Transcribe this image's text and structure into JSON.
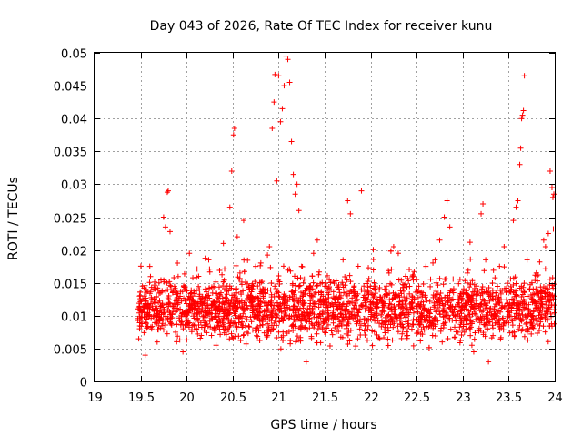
{
  "chart_data": {
    "type": "scatter",
    "title": "Day 043 of 2026, Rate Of TEC Index for receiver kunu",
    "xlabel": "GPS time / hours",
    "ylabel": "ROTI / TECUs",
    "xlim": [
      19,
      24
    ],
    "ylim": [
      0,
      0.05
    ],
    "grid": true,
    "marker": "+",
    "point_color": "#ff0000",
    "x_ticks": [
      "19",
      "19.5",
      "20",
      "20.5",
      "21",
      "21.5",
      "22",
      "22.5",
      "23",
      "23.5",
      "24"
    ],
    "y_ticks": [
      "0",
      "0.005",
      "0.01",
      "0.015",
      "0.02",
      "0.025",
      "0.03",
      "0.035",
      "0.04",
      "0.045",
      "0.05"
    ],
    "series": [
      {
        "name": "ROTI",
        "points": [
          [
            19.48,
            0.0065
          ],
          [
            19.5,
            0.011
          ],
          [
            19.52,
            0.0145
          ],
          [
            19.55,
            0.004
          ],
          [
            19.58,
            0.0105
          ],
          [
            19.6,
            0.0175
          ],
          [
            19.62,
            0.008
          ],
          [
            19.65,
            0.0125
          ],
          [
            19.68,
            0.006
          ],
          [
            19.7,
            0.015
          ],
          [
            19.72,
            0.0095
          ],
          [
            19.75,
            0.025
          ],
          [
            19.77,
            0.0235
          ],
          [
            19.79,
            0.0288
          ],
          [
            19.8,
            0.029
          ],
          [
            19.82,
            0.0228
          ],
          [
            19.85,
            0.0135
          ],
          [
            19.88,
            0.0075
          ],
          [
            19.9,
            0.018
          ],
          [
            19.93,
            0.011
          ],
          [
            19.96,
            0.0045
          ],
          [
            20.0,
            0.0138
          ],
          [
            20.03,
            0.0195
          ],
          [
            20.06,
            0.0085
          ],
          [
            20.1,
            0.012
          ],
          [
            20.13,
            0.016
          ],
          [
            20.16,
            0.007
          ],
          [
            20.2,
            0.0105
          ],
          [
            20.24,
            0.0185
          ],
          [
            20.28,
            0.0095
          ],
          [
            20.32,
            0.0055
          ],
          [
            20.36,
            0.013
          ],
          [
            20.4,
            0.021
          ],
          [
            20.44,
            0.0145
          ],
          [
            20.47,
            0.0265
          ],
          [
            20.49,
            0.032
          ],
          [
            20.51,
            0.0375
          ],
          [
            20.52,
            0.0385
          ],
          [
            20.55,
            0.022
          ],
          [
            20.58,
            0.0165
          ],
          [
            20.62,
            0.0245
          ],
          [
            20.65,
            0.0075
          ],
          [
            20.7,
            0.012
          ],
          [
            20.75,
            0.0175
          ],
          [
            20.8,
            0.0085
          ],
          [
            20.85,
            0.0135
          ],
          [
            20.9,
            0.0205
          ],
          [
            20.93,
            0.0385
          ],
          [
            20.95,
            0.0425
          ],
          [
            20.96,
            0.0467
          ],
          [
            20.98,
            0.0305
          ],
          [
            21.0,
            0.0465
          ],
          [
            21.02,
            0.0395
          ],
          [
            21.04,
            0.0415
          ],
          [
            21.06,
            0.045
          ],
          [
            21.08,
            0.0495
          ],
          [
            21.1,
            0.049
          ],
          [
            21.12,
            0.0455
          ],
          [
            21.14,
            0.0365
          ],
          [
            21.16,
            0.0315
          ],
          [
            21.18,
            0.0285
          ],
          [
            21.2,
            0.03
          ],
          [
            21.22,
            0.026
          ],
          [
            21.25,
            0.0175
          ],
          [
            21.28,
            0.0095
          ],
          [
            21.3,
            0.003
          ],
          [
            21.34,
            0.0115
          ],
          [
            21.38,
            0.0195
          ],
          [
            21.42,
            0.0215
          ],
          [
            21.46,
            0.0135
          ],
          [
            21.5,
            0.0075
          ],
          [
            21.55,
            0.0155
          ],
          [
            21.6,
            0.01
          ],
          [
            21.65,
            0.0125
          ],
          [
            21.7,
            0.0185
          ],
          [
            21.75,
            0.0275
          ],
          [
            21.78,
            0.0255
          ],
          [
            21.82,
            0.0145
          ],
          [
            21.86,
            0.0065
          ],
          [
            21.9,
            0.029
          ],
          [
            21.94,
            0.012
          ],
          [
            22.0,
            0.0095
          ],
          [
            22.05,
            0.0145
          ],
          [
            22.1,
            0.0065
          ],
          [
            22.15,
            0.0115
          ],
          [
            22.2,
            0.0165
          ],
          [
            22.25,
            0.0205
          ],
          [
            22.3,
            0.0195
          ],
          [
            22.35,
            0.0105
          ],
          [
            22.4,
            0.007
          ],
          [
            22.45,
            0.013
          ],
          [
            22.5,
            0.0155
          ],
          [
            22.55,
            0.009
          ],
          [
            22.6,
            0.0175
          ],
          [
            22.65,
            0.011
          ],
          [
            22.7,
            0.0185
          ],
          [
            22.75,
            0.0215
          ],
          [
            22.8,
            0.025
          ],
          [
            22.83,
            0.0275
          ],
          [
            22.86,
            0.0235
          ],
          [
            22.9,
            0.0135
          ],
          [
            22.95,
            0.0075
          ],
          [
            23.0,
            0.0115
          ],
          [
            23.05,
            0.0165
          ],
          [
            23.1,
            0.0055
          ],
          [
            23.12,
            0.0045
          ],
          [
            23.15,
            0.0145
          ],
          [
            23.2,
            0.0255
          ],
          [
            23.22,
            0.027
          ],
          [
            23.25,
            0.0185
          ],
          [
            23.28,
            0.003
          ],
          [
            23.32,
            0.0095
          ],
          [
            23.36,
            0.0135
          ],
          [
            23.4,
            0.0175
          ],
          [
            23.45,
            0.0205
          ],
          [
            23.5,
            0.0115
          ],
          [
            23.55,
            0.0245
          ],
          [
            23.58,
            0.0265
          ],
          [
            23.6,
            0.0275
          ],
          [
            23.62,
            0.033
          ],
          [
            23.63,
            0.0355
          ],
          [
            23.64,
            0.04
          ],
          [
            23.65,
            0.0405
          ],
          [
            23.66,
            0.0412
          ],
          [
            23.67,
            0.0465
          ],
          [
            23.7,
            0.0185
          ],
          [
            23.75,
            0.0095
          ],
          [
            23.8,
            0.0165
          ],
          [
            23.85,
            0.0125
          ],
          [
            23.88,
            0.0215
          ],
          [
            23.9,
            0.0205
          ],
          [
            23.93,
            0.0225
          ],
          [
            23.95,
            0.032
          ],
          [
            23.97,
            0.0295
          ],
          [
            23.98,
            0.028
          ],
          [
            23.99,
            0.0285
          ],
          [
            23.985,
            0.0232
          ]
        ]
      }
    ]
  }
}
